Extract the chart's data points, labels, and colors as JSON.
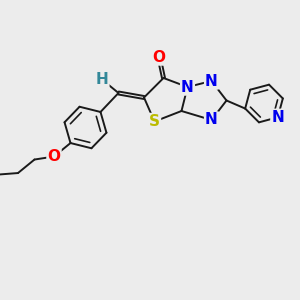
{
  "background_color": "#ececec",
  "bond_color": "#1a1a1a",
  "bond_width": 1.4,
  "atom_colors": {
    "O": "#ff0000",
    "N": "#0000ee",
    "S": "#bbbb00",
    "H": "#338899",
    "C": "#1a1a1a"
  },
  "font_size_atom": 11,
  "xlim": [
    0,
    10
  ],
  "ylim": [
    0,
    10
  ]
}
